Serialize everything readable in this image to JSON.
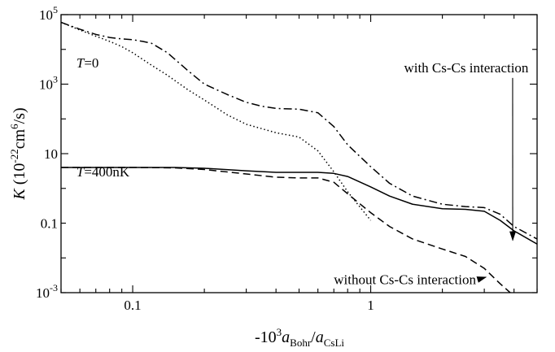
{
  "chart_data": {
    "type": "line",
    "xscale": "log",
    "yscale": "log",
    "xlim": [
      0.05,
      5
    ],
    "ylim": [
      0.001,
      100000
    ],
    "grid": false,
    "xaxis": {
      "label_main": "-10",
      "label_exp": "3",
      "label_a1": "a",
      "label_sub1": "Bohr",
      "label_slash": "/",
      "label_a2": "a",
      "label_sub2": "CsLi",
      "ticks": [
        {
          "value": 0.1,
          "label": "0.1"
        },
        {
          "value": 1,
          "label": "1"
        }
      ]
    },
    "yaxis": {
      "label_K": "K",
      "label_open": " (10",
      "label_exp1": "-22",
      "label_mid": "cm",
      "label_exp2": "6",
      "label_close": "/s)",
      "ticks": [
        {
          "value": 0.001,
          "base": "10",
          "exp": "-3",
          "label": ""
        },
        {
          "value": 0.1,
          "base": "",
          "exp": "",
          "label": "0.1"
        },
        {
          "value": 10,
          "base": "",
          "exp": "",
          "label": "10"
        },
        {
          "value": 1000,
          "base": "10",
          "exp": "3",
          "label": ""
        },
        {
          "value": 100000,
          "base": "10",
          "exp": "5",
          "label": ""
        }
      ]
    },
    "annotations": [
      {
        "id": "t0",
        "italic": "T",
        "text": "=0",
        "at": [
          0.058,
          3000
        ]
      },
      {
        "id": "t400",
        "italic": "T",
        "text": "=400nK",
        "at": [
          0.058,
          2.2
        ]
      },
      {
        "id": "with",
        "text": "with Cs-Cs interaction",
        "at": [
          1.38,
          2200
        ],
        "arrow_to": [
          3.95,
          0.032
        ]
      },
      {
        "id": "without",
        "text": "without Cs-Cs interaction",
        "at": [
          0.7,
          0.00175
        ],
        "arrow_to": [
          3.05,
          0.0028
        ]
      }
    ],
    "series": [
      {
        "dash": "dashdot",
        "x": [
          0.05,
          0.06,
          0.07,
          0.08,
          0.09,
          0.1,
          0.11,
          0.12,
          0.14,
          0.17,
          0.2,
          0.25,
          0.3,
          0.35,
          0.4,
          0.5,
          0.6,
          0.7,
          0.8,
          1.0,
          1.2,
          1.5,
          2.0,
          2.5,
          3.0,
          3.5,
          4.0,
          5.0
        ],
        "y": [
          60000,
          38000,
          27000,
          22000,
          20000,
          19000,
          17000,
          15000,
          8000,
          2500,
          1000,
          500,
          300,
          230,
          200,
          190,
          150,
          60,
          18,
          4.2,
          1.4,
          0.6,
          0.35,
          0.3,
          0.28,
          0.18,
          0.08,
          0.035
        ]
      },
      {
        "dash": "dotted",
        "x": [
          0.05,
          0.06,
          0.07,
          0.08,
          0.09,
          0.1,
          0.12,
          0.14,
          0.17,
          0.2,
          0.25,
          0.3,
          0.4,
          0.5,
          0.6,
          0.7,
          0.8,
          1.0
        ],
        "y": [
          60000,
          36000,
          24000,
          17000,
          12000,
          8000,
          3500,
          1800,
          700,
          350,
          130,
          70,
          40,
          30,
          12,
          3,
          0.8,
          0.12
        ]
      },
      {
        "dash": "solid",
        "x": [
          0.05,
          0.07,
          0.1,
          0.15,
          0.2,
          0.3,
          0.4,
          0.5,
          0.6,
          0.7,
          0.8,
          1.0,
          1.2,
          1.5,
          2.0,
          2.5,
          3.0,
          3.5,
          4.0,
          5.0
        ],
        "y": [
          4.0,
          4.0,
          4.0,
          4.0,
          3.8,
          3.2,
          2.9,
          2.9,
          2.9,
          2.7,
          2.2,
          1.1,
          0.6,
          0.35,
          0.26,
          0.25,
          0.22,
          0.12,
          0.06,
          0.025
        ]
      },
      {
        "dash": "dashed",
        "x": [
          0.05,
          0.07,
          0.1,
          0.15,
          0.2,
          0.3,
          0.4,
          0.5,
          0.6,
          0.7,
          0.8,
          1.0,
          1.2,
          1.5,
          2.0,
          2.5,
          3.0,
          3.5,
          4.0,
          5.0
        ],
        "y": [
          4.0,
          4.0,
          4.0,
          3.9,
          3.5,
          2.6,
          2.1,
          2.0,
          2.0,
          1.5,
          0.7,
          0.2,
          0.08,
          0.035,
          0.018,
          0.011,
          0.005,
          0.0018,
          0.0008,
          0.0002
        ]
      }
    ]
  }
}
